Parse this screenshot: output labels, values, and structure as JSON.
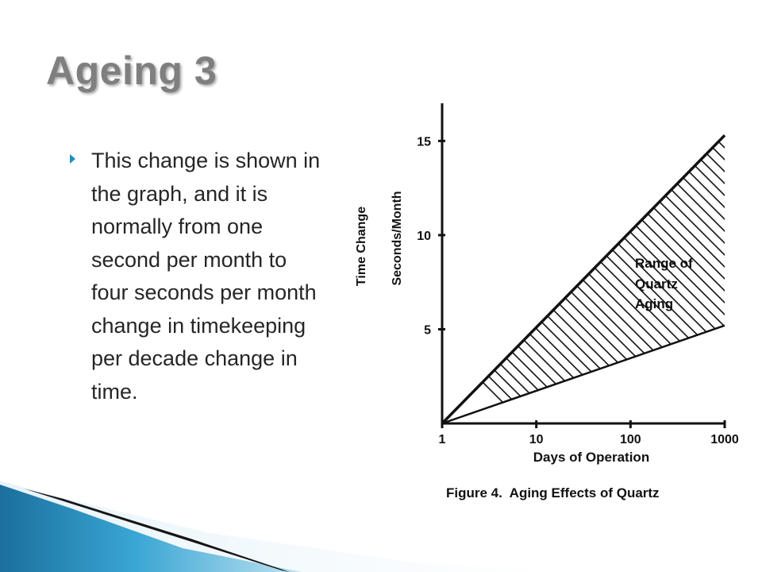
{
  "slide": {
    "title": "Ageing 3",
    "bullet": "This change is shown in the graph, and it is normally from one second per month to four seconds per month change in timekeeping per decade change in time."
  },
  "colors": {
    "title": "#7f7f7f",
    "accent": "#1f8fc0",
    "text": "#262626"
  },
  "chart_data": {
    "type": "area",
    "title": "Figure 4.  Aging Effects of Quartz",
    "xlabel": "Days of Operation",
    "ylabel": "Time Change",
    "ylabel_unit": "Seconds/Month",
    "x_scale": "log",
    "xlim": [
      1,
      1000
    ],
    "ylim": [
      0,
      17
    ],
    "x_ticks": [
      "1",
      "10",
      "100",
      "1000"
    ],
    "y_ticks": [
      "5",
      "10",
      "15"
    ],
    "series": [
      {
        "x": [
          1,
          1000
        ],
        "values": [
          0,
          15.3
        ]
      },
      {
        "x": [
          1,
          1000
        ],
        "values": [
          0,
          5.2
        ]
      }
    ],
    "annotation": [
      "Range of",
      "Quartz",
      "Aging"
    ]
  }
}
